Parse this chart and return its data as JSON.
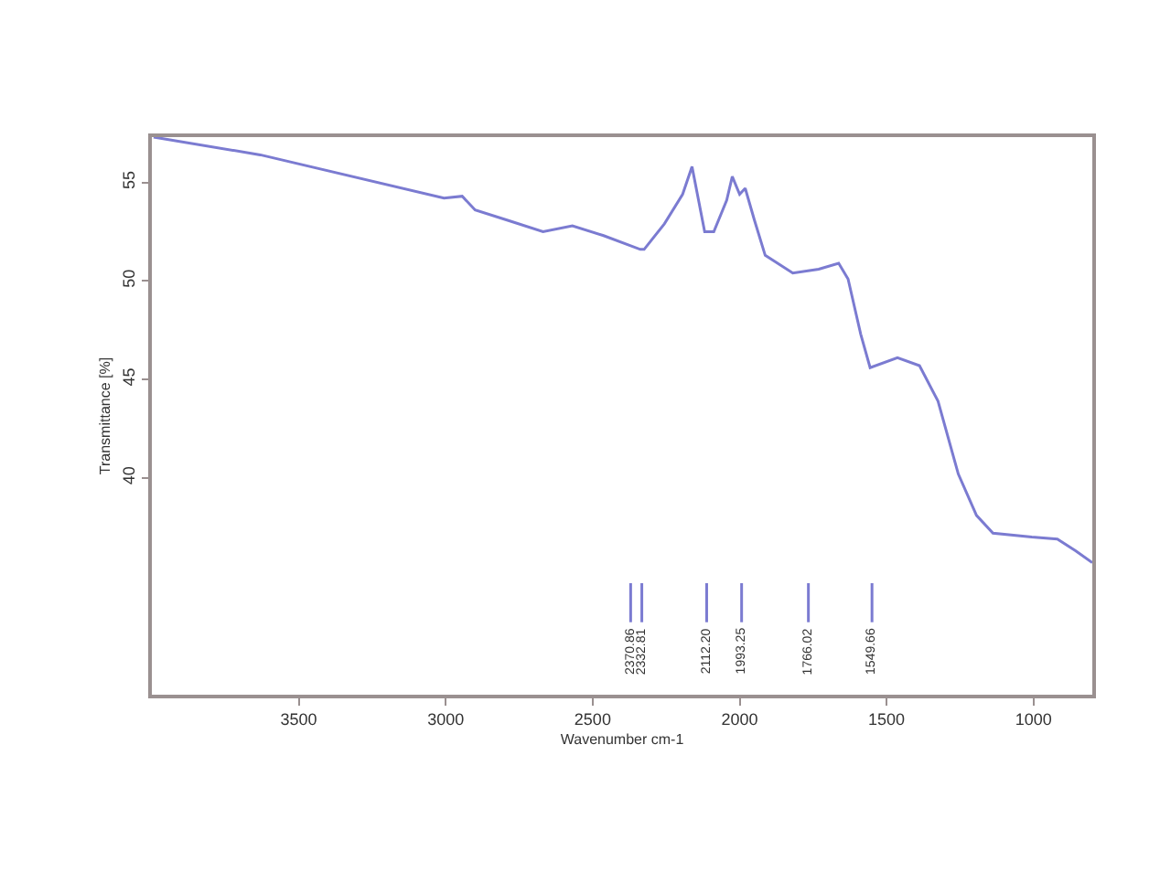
{
  "chart_data": {
    "type": "line",
    "xlabel": "Wavenumber cm-1",
    "ylabel": "Transmittance [%]",
    "x": [
      3994,
      3631,
      3006,
      2944,
      2900,
      2794,
      2669,
      2569,
      2463,
      2338,
      2325,
      2256,
      2194,
      2162,
      2119,
      2088,
      2044,
      2025,
      2000,
      1981,
      1950,
      1913,
      1819,
      1731,
      1663,
      1631,
      1588,
      1556,
      1463,
      1388,
      1325,
      1256,
      1194,
      1138,
      1006,
      919,
      856,
      800
    ],
    "series": [
      {
        "color": "#7b7bd1",
        "values": [
          57.3,
          56.4,
          54.2,
          54.3,
          53.6,
          53.1,
          52.5,
          52.8,
          52.3,
          51.6,
          51.6,
          52.9,
          54.4,
          55.8,
          52.5,
          52.5,
          54.1,
          55.3,
          54.4,
          54.7,
          53.1,
          51.3,
          50.4,
          50.6,
          50.9,
          50.1,
          47.3,
          45.6,
          46.1,
          45.7,
          43.9,
          40.2,
          38.1,
          37.2,
          37.0,
          36.9,
          36.3,
          35.7
        ]
      }
    ],
    "xlim": [
      4000,
      800
    ],
    "xticks": [
      3500,
      3000,
      2500,
      2000,
      1500,
      1000
    ],
    "ylim": [
      29,
      57.3
    ],
    "yticks": [
      40,
      45,
      50,
      55
    ],
    "ref_lines": [
      {
        "axis": "x",
        "value": 2370.86,
        "label": "2370.86",
        "color": "#7b7bd1"
      },
      {
        "axis": "x",
        "value": 2332.81,
        "label": "2332.81",
        "color": "#7b7bd1"
      },
      {
        "axis": "x",
        "value": 2112.2,
        "label": "2112.20",
        "color": "#7b7bd1"
      },
      {
        "axis": "x",
        "value": 1993.25,
        "label": "1993.25",
        "color": "#7b7bd1"
      },
      {
        "axis": "x",
        "value": 1766.02,
        "label": "1766.02",
        "color": "#7b7bd1"
      },
      {
        "axis": "x",
        "value": 1549.66,
        "label": "1549.66",
        "color": "#7b7bd1"
      }
    ],
    "marker": "none",
    "line_style": "solid"
  }
}
